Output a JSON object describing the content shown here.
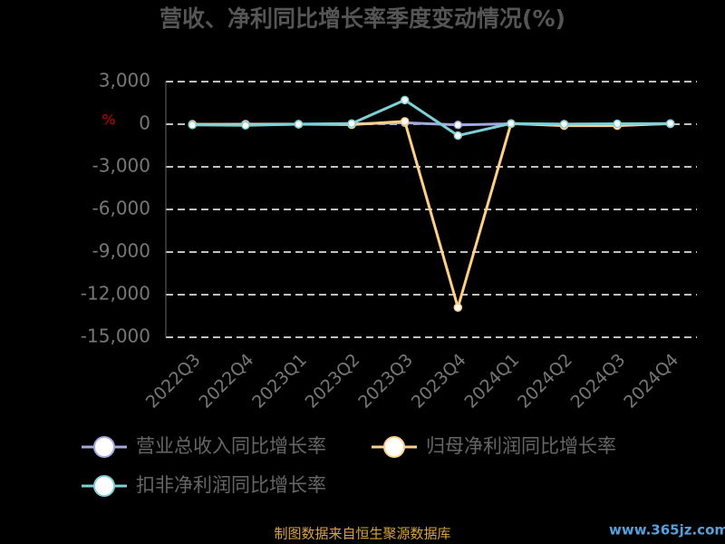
{
  "chart_data": {
    "type": "line",
    "title": "营收、净利同比增长率季度变动情况(%)",
    "y_label": "%",
    "categories": [
      "2022Q3",
      "2022Q4",
      "2023Q1",
      "2023Q2",
      "2023Q3",
      "2023Q4",
      "2024Q1",
      "2024Q2",
      "2024Q3",
      "2024Q4"
    ],
    "series": [
      {
        "name": "营业总收入同比增长率",
        "color": "#a3a9e0",
        "values": [
          -30,
          10,
          5,
          20,
          100,
          -50,
          30,
          10,
          5,
          20
        ]
      },
      {
        "name": "归母净利润同比增长率",
        "color": "#ffd08a",
        "values": [
          0,
          -20,
          0,
          -30,
          200,
          -12900,
          50,
          -100,
          -100,
          50
        ]
      },
      {
        "name": "扣非净利润同比增长率",
        "color": "#7fd0d6",
        "values": [
          -50,
          -80,
          0,
          50,
          1700,
          -800,
          50,
          0,
          30,
          50
        ]
      }
    ],
    "ylim": [
      -15000,
      3000
    ],
    "yticks": [
      {
        "value": -15000,
        "label": "-15,000"
      },
      {
        "value": -12000,
        "label": "-12,000"
      },
      {
        "value": -9000,
        "label": "-9,000"
      },
      {
        "value": -6000,
        "label": "-6,000"
      },
      {
        "value": -3000,
        "label": "-3,000"
      },
      0,
      {
        "value": 3000,
        "label": "3,000"
      }
    ],
    "grid": true,
    "source": "制图数据来自恒生聚源数据库",
    "watermark": "www.365jz.com"
  }
}
